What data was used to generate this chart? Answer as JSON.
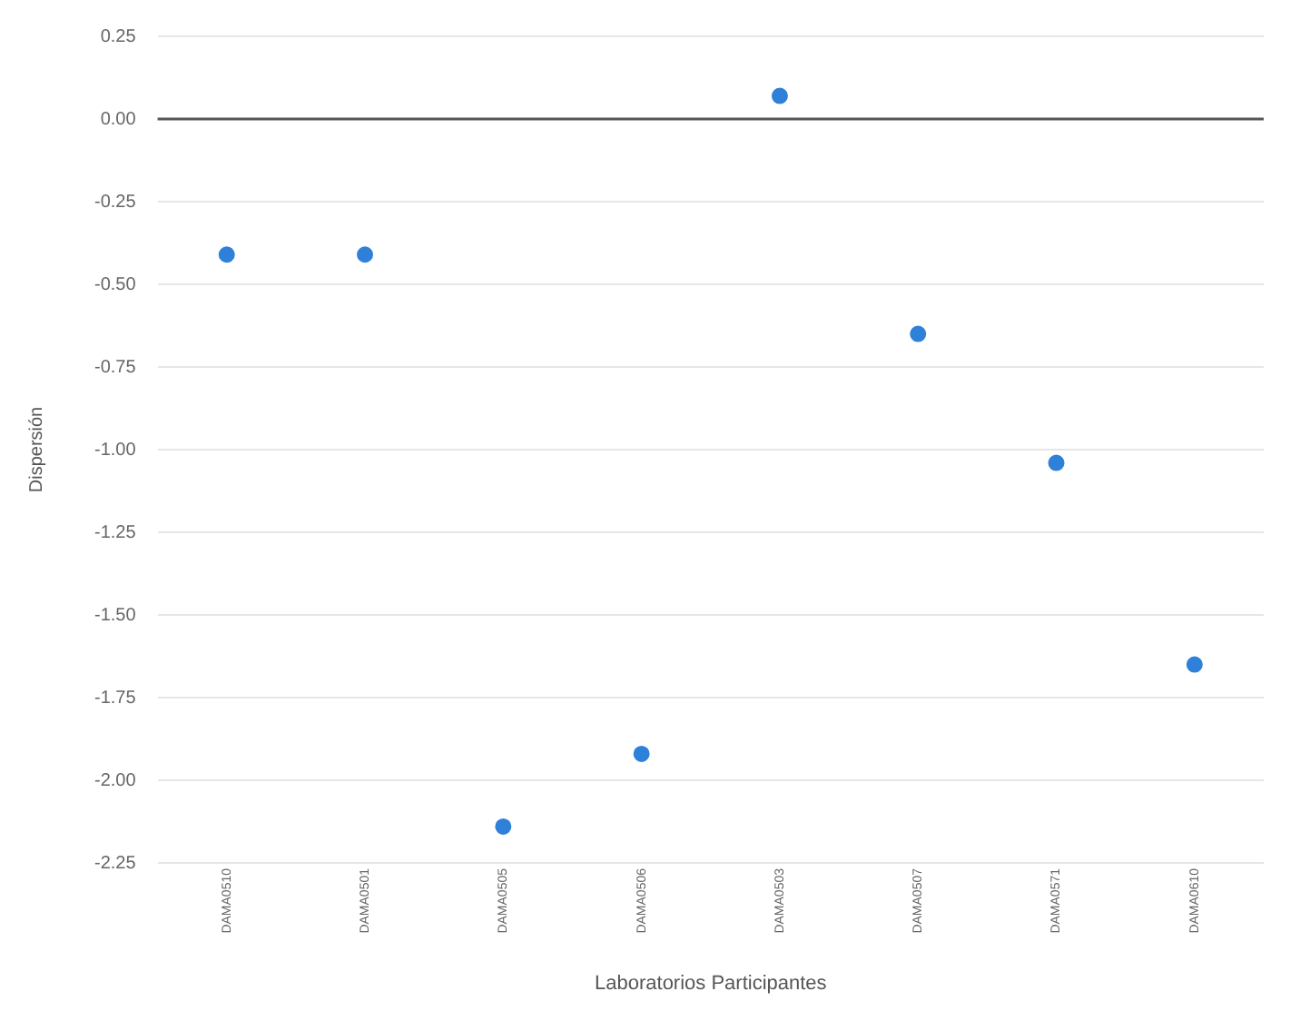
{
  "chart_data": {
    "type": "scatter",
    "xlabel": "Laboratorios Participantes",
    "ylabel": "Dispersión",
    "categories": [
      "DAMA0510",
      "DAMA0501",
      "DAMA0505",
      "DAMA0506",
      "DAMA0503",
      "DAMA0507",
      "DAMA0571",
      "DAMA0610"
    ],
    "series": [
      {
        "color": "#2f80d8",
        "values": [
          -0.41,
          -0.41,
          -2.14,
          -1.92,
          0.07,
          -0.65,
          -1.04,
          -1.65
        ]
      }
    ],
    "ylim": [
      -2.25,
      0.25
    ],
    "yticks": [
      {
        "value": 0.25,
        "label": "0.25"
      },
      {
        "value": 0,
        "label": "0.00"
      },
      {
        "value": -0.25,
        "label": "-0.25"
      },
      {
        "value": -0.5,
        "label": "-0.50"
      },
      {
        "value": -0.75,
        "label": "-0.75"
      },
      {
        "value": -1,
        "label": "-1.00"
      },
      {
        "value": -1.25,
        "label": "-1.25"
      },
      {
        "value": -1.5,
        "label": "-1.50"
      },
      {
        "value": -1.75,
        "label": "-1.75"
      },
      {
        "value": -2,
        "label": "-2.00"
      },
      {
        "value": -2.25,
        "label": "-2.25"
      }
    ],
    "ref_lines": [
      {
        "axis": "y",
        "value": 0,
        "color": "#555555"
      }
    ],
    "grid": "y",
    "legend": false,
    "marker": "circle"
  }
}
